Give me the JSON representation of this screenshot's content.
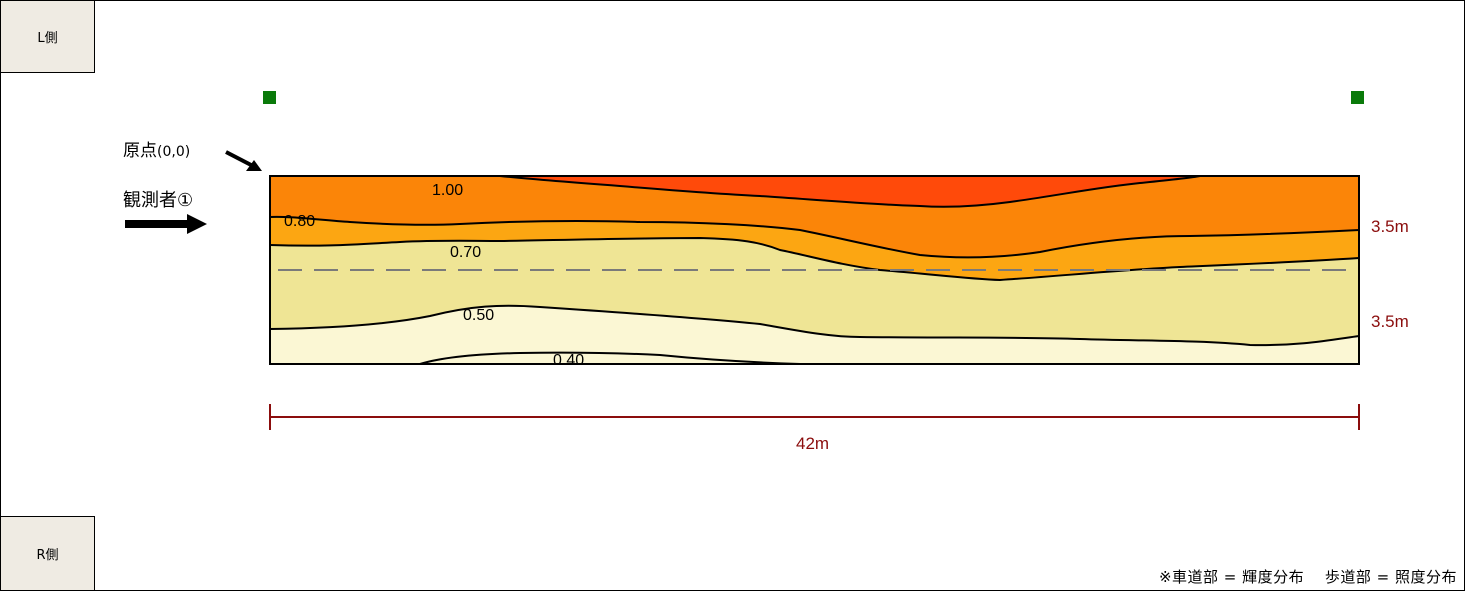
{
  "side_labels": {
    "left": "L側",
    "right": "R側"
  },
  "origin_label": {
    "text": "原点",
    "coords": "(0,0)"
  },
  "observer_label": "観測者①",
  "dimensions": {
    "width": "42m",
    "lane_upper": "3.5m",
    "lane_lower": "3.5m"
  },
  "contour_labels": [
    "1.00",
    "0.80",
    "0.70",
    "0.50",
    "0.40"
  ],
  "footnote": "※車道部 = 輝度分布　 歩道部 = 照度分布",
  "colors": {
    "level_1_00": "#ff4a0a",
    "level_0_80": "#fb8508",
    "level_0_70": "#fca612",
    "level_0_50": "#efe595",
    "level_0_40": "#fbf7d4",
    "dimension_line": "#8b0d0d",
    "marker": "#0a7a0a",
    "lane_divider": "#7a7a7a"
  },
  "icons": [
    "observer-arrow-icon",
    "origin-pointer-icon",
    "pole-marker-icon"
  ]
}
